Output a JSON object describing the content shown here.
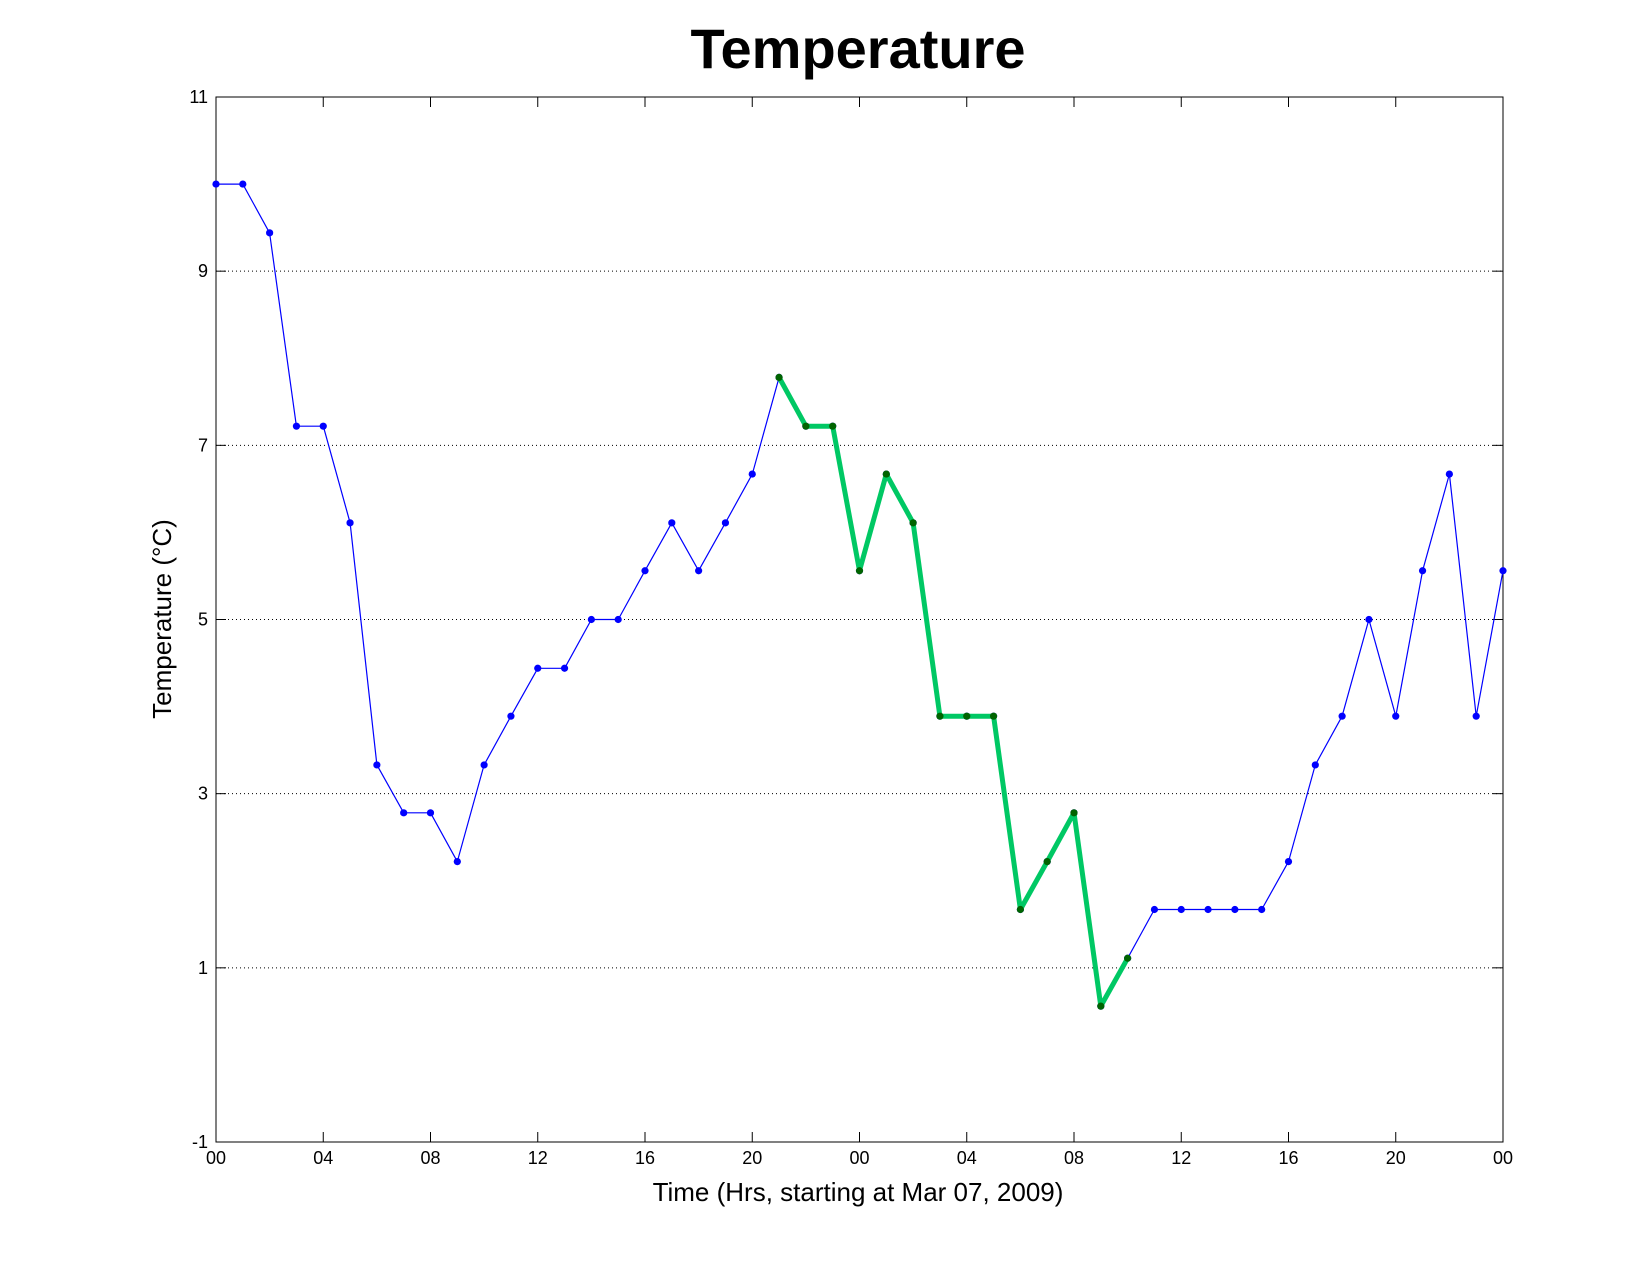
{
  "chart_data": {
    "type": "line",
    "title": "Temperature",
    "xlabel": "Time (Hrs, starting at Mar 07, 2009)",
    "ylabel": "Temperature (°C)",
    "xlim": [
      0,
      48
    ],
    "ylim": [
      -1,
      11
    ],
    "x_tick_values": [
      0,
      4,
      8,
      12,
      16,
      20,
      24,
      28,
      32,
      36,
      40,
      44,
      48
    ],
    "x_tick_labels": [
      "00",
      "04",
      "08",
      "12",
      "16",
      "20",
      "00",
      "04",
      "08",
      "12",
      "16",
      "20",
      "00"
    ],
    "y_ticks": [
      -1,
      1,
      3,
      5,
      7,
      9,
      11
    ],
    "grid": "horizontal dotted",
    "series": [
      {
        "color": "#0000ff",
        "x": [
          0,
          1,
          2,
          3,
          4,
          5,
          6,
          7,
          8,
          9,
          10,
          11,
          12,
          13,
          14,
          15,
          16,
          17,
          18,
          19,
          20,
          21,
          22,
          23,
          24,
          25,
          26,
          27,
          28,
          29,
          30,
          31,
          32,
          33,
          34,
          35,
          36,
          37,
          38,
          39,
          40,
          41,
          42,
          43,
          44,
          45,
          46,
          47,
          48
        ],
        "values": [
          10,
          10,
          9.44,
          7.22,
          7.22,
          6.11,
          3.33,
          2.78,
          2.78,
          2.22,
          3.33,
          3.89,
          4.44,
          4.44,
          5,
          5,
          5.56,
          6.11,
          5.56,
          6.11,
          6.67,
          7.78,
          7.22,
          7.22,
          5.56,
          6.67,
          6.11,
          3.89,
          3.89,
          3.89,
          1.67,
          2.22,
          2.78,
          0.56,
          1.11,
          1.67,
          1.67,
          1.67,
          1.67,
          1.67,
          2.22,
          3.33,
          3.89,
          5,
          3.89,
          5.56,
          6.67,
          3.89,
          5.56
        ]
      },
      {
        "color": "#00c864",
        "x": [
          21,
          22,
          23,
          24,
          25,
          26,
          27,
          28,
          29,
          30,
          31,
          32,
          33,
          34
        ],
        "values": [
          7.78,
          7.22,
          7.22,
          5.56,
          6.67,
          6.11,
          3.89,
          3.89,
          3.89,
          1.67,
          2.22,
          2.78,
          0.56,
          1.11
        ]
      }
    ]
  }
}
